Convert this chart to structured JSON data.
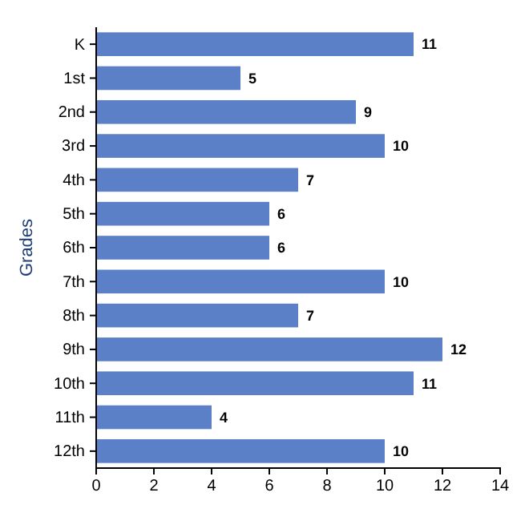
{
  "chart_data": {
    "type": "bar",
    "orientation": "horizontal",
    "ylabel": "Grades",
    "categories": [
      "K",
      "1st",
      "2nd",
      "3rd",
      "4th",
      "5th",
      "6th",
      "7th",
      "8th",
      "9th",
      "10th",
      "11th",
      "12th"
    ],
    "values": [
      11,
      5,
      9,
      10,
      7,
      6,
      6,
      10,
      7,
      12,
      11,
      4,
      10
    ],
    "color": "#5b80c8",
    "xlim": [
      0,
      14
    ],
    "xticks": [
      0,
      2,
      4,
      6,
      8,
      10,
      12,
      14
    ],
    "data_labels": true,
    "grid": false
  }
}
